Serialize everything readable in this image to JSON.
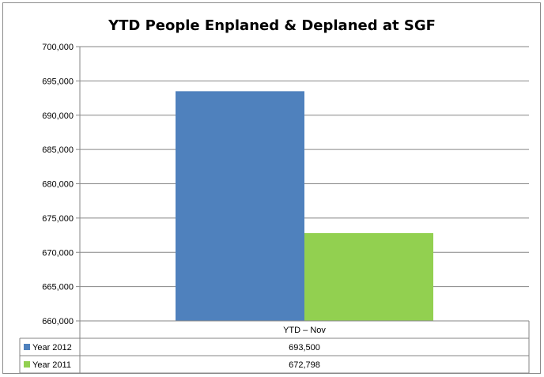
{
  "chart_data": {
    "type": "bar",
    "title": "YTD People Enplaned & Deplaned at SGF",
    "categories": [
      "YTD – Nov"
    ],
    "series": [
      {
        "name": "Year 2012",
        "values": [
          693500
        ],
        "value_labels": [
          "693,500"
        ],
        "color": "#4f81bd"
      },
      {
        "name": "Year 2011",
        "values": [
          672798
        ],
        "value_labels": [
          "672,798"
        ],
        "color": "#92d050"
      }
    ],
    "ylim": [
      660000,
      700000
    ],
    "yticks": [
      660000,
      665000,
      670000,
      675000,
      680000,
      685000,
      690000,
      695000,
      700000
    ],
    "ytick_labels": [
      "660,000",
      "665,000",
      "670,000",
      "675,000",
      "680,000",
      "685,000",
      "690,000",
      "695,000",
      "700,000"
    ],
    "grid": true,
    "legend": "data-table"
  }
}
